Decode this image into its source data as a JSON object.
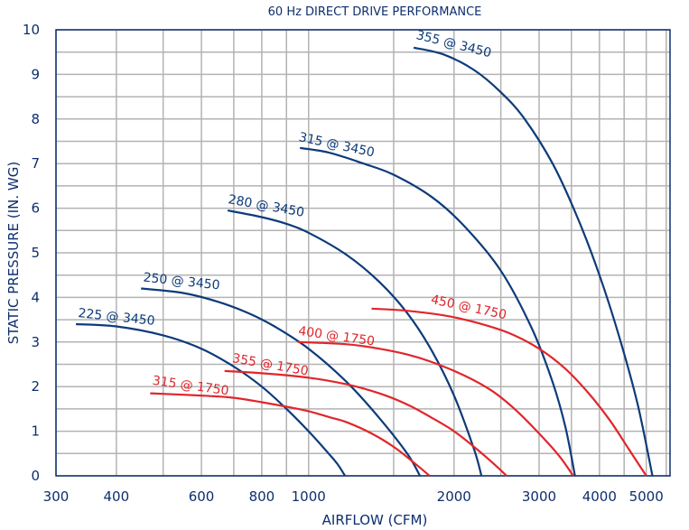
{
  "chart_data": {
    "type": "line",
    "title": "60 Hz DIRECT DRIVE PERFORMANCE",
    "xlabel": "AIRFLOW (CFM)",
    "ylabel": "STATIC PRESSURE (IN. WG)",
    "x_scale": "log",
    "xlim": [
      300,
      5600
    ],
    "ylim": [
      0,
      10
    ],
    "grid": true,
    "x_ticks": [
      300,
      400,
      600,
      800,
      1000,
      2000,
      3000,
      4000,
      5000
    ],
    "x_tick_labels": [
      "300",
      "400",
      "600",
      "800",
      "1000",
      "2000",
      "3000",
      "4000",
      "5000"
    ],
    "y_ticks": [
      0,
      1,
      2,
      3,
      4,
      5,
      6,
      7,
      8,
      9,
      10
    ],
    "y_tick_labels": [
      "0",
      "1",
      "2",
      "3",
      "4",
      "5",
      "6",
      "7",
      "8",
      "9",
      "10"
    ],
    "colors": {
      "3450": "#0d3b7a",
      "1750": "#e0262b",
      "text": "#0d2e6e",
      "grid": "#b3b3b3"
    },
    "series": [
      {
        "name": "225 @ 3450",
        "color": "#0d3b7a",
        "x": [
          330,
          400,
          500,
          600,
          700,
          800,
          900,
          1000,
          1100,
          1150,
          1190
        ],
        "y": [
          3.4,
          3.35,
          3.15,
          2.85,
          2.45,
          2.0,
          1.5,
          1.0,
          0.5,
          0.25,
          0.0
        ]
      },
      {
        "name": "250 @ 3450",
        "color": "#0d3b7a",
        "x": [
          450,
          550,
          650,
          750,
          850,
          1000,
          1200,
          1400,
          1600,
          1700
        ],
        "y": [
          4.2,
          4.1,
          3.9,
          3.65,
          3.35,
          2.85,
          2.1,
          1.3,
          0.5,
          0.0
        ]
      },
      {
        "name": "280 @ 3450",
        "color": "#0d3b7a",
        "x": [
          680,
          800,
          900,
          1000,
          1200,
          1400,
          1600,
          1800,
          2000,
          2200,
          2280
        ],
        "y": [
          5.95,
          5.8,
          5.65,
          5.45,
          4.95,
          4.35,
          3.65,
          2.8,
          1.8,
          0.6,
          0.0
        ]
      },
      {
        "name": "315 @ 3450",
        "color": "#0d3b7a",
        "x": [
          960,
          1100,
          1300,
          1500,
          1800,
          2100,
          2500,
          2900,
          3200,
          3400,
          3560
        ],
        "y": [
          7.35,
          7.25,
          7.0,
          6.75,
          6.25,
          5.6,
          4.6,
          3.3,
          2.1,
          1.1,
          0.0
        ]
      },
      {
        "name": "355 @ 3450",
        "color": "#0d3b7a",
        "x": [
          1650,
          1900,
          2200,
          2500,
          2800,
          3200,
          3600,
          4000,
          4400,
          4800,
          5150
        ],
        "y": [
          9.6,
          9.45,
          9.1,
          8.6,
          8.0,
          7.0,
          5.8,
          4.5,
          3.1,
          1.6,
          0.0
        ]
      },
      {
        "name": "315 @ 1750",
        "color": "#e0262b",
        "x": [
          470,
          600,
          700,
          800,
          900,
          1000,
          1100,
          1200,
          1350,
          1500,
          1650,
          1780
        ],
        "y": [
          1.85,
          1.8,
          1.75,
          1.65,
          1.55,
          1.45,
          1.32,
          1.2,
          0.95,
          0.65,
          0.3,
          0.0
        ]
      },
      {
        "name": "355 @ 1750",
        "color": "#e0262b",
        "x": [
          670,
          800,
          1000,
          1200,
          1400,
          1600,
          1800,
          2000,
          2200,
          2400,
          2570
        ],
        "y": [
          2.35,
          2.3,
          2.2,
          2.05,
          1.85,
          1.6,
          1.3,
          1.0,
          0.65,
          0.3,
          0.0
        ]
      },
      {
        "name": "400 @ 1750",
        "color": "#e0262b",
        "x": [
          950,
          1200,
          1400,
          1600,
          1800,
          2100,
          2400,
          2700,
          3000,
          3300,
          3530
        ],
        "y": [
          3.0,
          2.95,
          2.85,
          2.72,
          2.55,
          2.25,
          1.9,
          1.45,
          0.95,
          0.45,
          0.0
        ]
      },
      {
        "name": "450 @ 1750",
        "color": "#e0262b",
        "x": [
          1350,
          1600,
          1900,
          2200,
          2600,
          3000,
          3400,
          3800,
          4200,
          4600,
          5000
        ],
        "y": [
          3.75,
          3.7,
          3.6,
          3.45,
          3.2,
          2.85,
          2.4,
          1.85,
          1.25,
          0.6,
          0.0
        ]
      }
    ]
  }
}
